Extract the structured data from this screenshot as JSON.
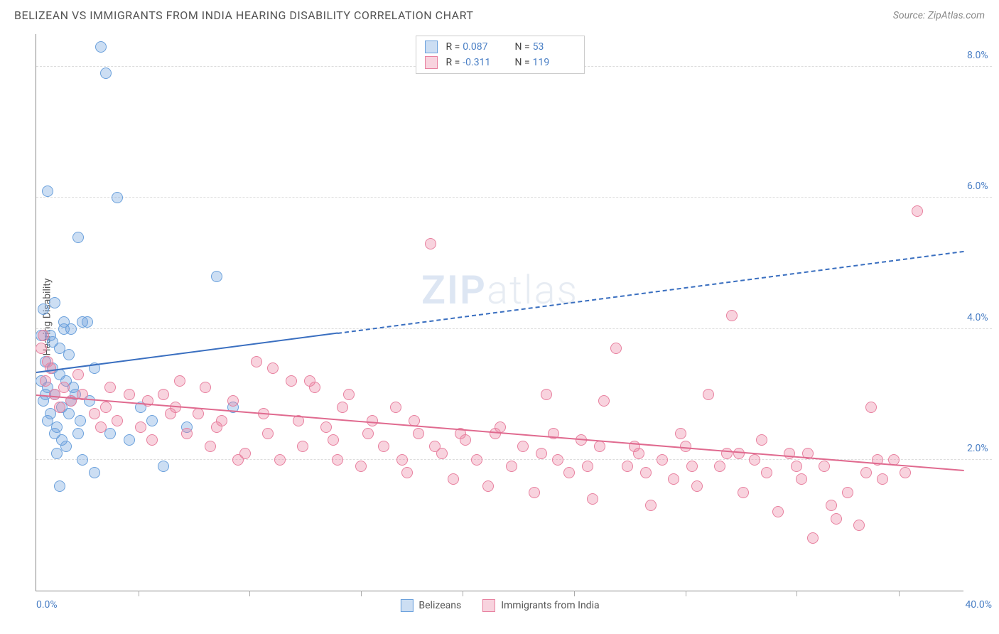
{
  "header": {
    "title": "BELIZEAN VS IMMIGRANTS FROM INDIA HEARING DISABILITY CORRELATION CHART",
    "source": "Source: ZipAtlas.com"
  },
  "watermark": {
    "prefix": "ZIP",
    "suffix": "atlas"
  },
  "chart": {
    "type": "scatter",
    "ylabel": "Hearing Disability",
    "xlim": [
      0,
      40
    ],
    "ylim": [
      0,
      8.5
    ],
    "x_axis": {
      "min_label": "0.0%",
      "max_label": "40.0%",
      "tick_positions_pct": [
        11,
        23,
        35,
        46,
        58,
        70,
        82,
        93
      ]
    },
    "y_grid": [
      {
        "value": 2.0,
        "label": "2.0%"
      },
      {
        "value": 4.0,
        "label": "4.0%"
      },
      {
        "value": 6.0,
        "label": "6.0%"
      },
      {
        "value": 8.0,
        "label": "8.0%"
      }
    ],
    "series": [
      {
        "name": "Belizeans",
        "fill": "rgba(110,160,220,0.35)",
        "stroke": "#6aa0dc",
        "r_value": "0.087",
        "n_value": "53",
        "trend": {
          "x1": 0,
          "y1": 3.35,
          "x2": 40,
          "y2": 5.2,
          "solid_until_x": 13,
          "color": "#3a6fc0"
        },
        "points": [
          [
            0.2,
            3.2
          ],
          [
            0.3,
            2.9
          ],
          [
            0.4,
            3.5
          ],
          [
            0.5,
            3.1
          ],
          [
            0.6,
            2.7
          ],
          [
            0.7,
            3.8
          ],
          [
            0.8,
            3.0
          ],
          [
            0.9,
            2.5
          ],
          [
            1.0,
            3.3
          ],
          [
            1.1,
            2.8
          ],
          [
            1.2,
            4.0
          ],
          [
            1.3,
            2.2
          ],
          [
            1.4,
            3.6
          ],
          [
            1.5,
            2.9
          ],
          [
            1.6,
            3.1
          ],
          [
            1.8,
            2.4
          ],
          [
            2.0,
            2.0
          ],
          [
            2.2,
            4.1
          ],
          [
            2.5,
            3.4
          ],
          [
            2.8,
            8.3
          ],
          [
            3.0,
            7.9
          ],
          [
            3.5,
            6.0
          ],
          [
            0.5,
            6.1
          ],
          [
            1.8,
            5.4
          ],
          [
            4.5,
            2.8
          ],
          [
            5.0,
            2.6
          ],
          [
            5.5,
            1.9
          ],
          [
            6.5,
            2.5
          ],
          [
            7.8,
            4.8
          ],
          [
            1.0,
            1.6
          ],
          [
            2.5,
            1.8
          ],
          [
            1.2,
            4.1
          ],
          [
            8.5,
            2.8
          ],
          [
            0.3,
            4.3
          ],
          [
            0.8,
            4.4
          ],
          [
            1.5,
            4.0
          ],
          [
            2.0,
            4.1
          ],
          [
            0.6,
            3.9
          ],
          [
            3.2,
            2.4
          ],
          [
            4.0,
            2.3
          ],
          [
            1.0,
            3.7
          ],
          [
            0.4,
            3.0
          ],
          [
            0.7,
            3.4
          ],
          [
            1.3,
            3.2
          ],
          [
            1.7,
            3.0
          ],
          [
            2.3,
            2.9
          ],
          [
            0.9,
            2.1
          ],
          [
            1.1,
            2.3
          ],
          [
            0.5,
            2.6
          ],
          [
            0.8,
            2.4
          ],
          [
            1.4,
            2.7
          ],
          [
            1.9,
            2.6
          ],
          [
            0.2,
            3.9
          ]
        ]
      },
      {
        "name": "Immigrants from India",
        "fill": "rgba(235,130,160,0.35)",
        "stroke": "#e8809f",
        "r_value": "-0.311",
        "n_value": "119",
        "trend": {
          "x1": 0,
          "y1": 3.0,
          "x2": 40,
          "y2": 1.85,
          "solid_until_x": 40,
          "color": "#e06a8f"
        },
        "points": [
          [
            0.2,
            3.7
          ],
          [
            0.3,
            3.9
          ],
          [
            0.4,
            3.2
          ],
          [
            0.5,
            3.5
          ],
          [
            0.8,
            3.0
          ],
          [
            1.0,
            2.8
          ],
          [
            1.5,
            2.9
          ],
          [
            2.0,
            3.0
          ],
          [
            2.5,
            2.7
          ],
          [
            3.0,
            2.8
          ],
          [
            3.5,
            2.6
          ],
          [
            4.0,
            3.0
          ],
          [
            4.5,
            2.5
          ],
          [
            5.0,
            2.3
          ],
          [
            5.5,
            3.0
          ],
          [
            6.0,
            2.8
          ],
          [
            6.5,
            2.4
          ],
          [
            7.0,
            2.7
          ],
          [
            7.5,
            2.2
          ],
          [
            8.0,
            2.6
          ],
          [
            8.5,
            2.9
          ],
          [
            9.0,
            2.1
          ],
          [
            9.5,
            3.5
          ],
          [
            10.0,
            2.4
          ],
          [
            10.5,
            2.0
          ],
          [
            11.0,
            3.2
          ],
          [
            11.5,
            2.2
          ],
          [
            12.0,
            3.1
          ],
          [
            12.5,
            2.5
          ],
          [
            13.0,
            2.0
          ],
          [
            13.5,
            3.0
          ],
          [
            14.0,
            1.9
          ],
          [
            14.5,
            2.6
          ],
          [
            15.0,
            2.2
          ],
          [
            15.5,
            2.8
          ],
          [
            16.0,
            1.8
          ],
          [
            16.5,
            2.4
          ],
          [
            17.0,
            5.3
          ],
          [
            17.5,
            2.1
          ],
          [
            18.0,
            1.7
          ],
          [
            18.5,
            2.3
          ],
          [
            19.0,
            2.0
          ],
          [
            19.5,
            1.6
          ],
          [
            20.0,
            2.5
          ],
          [
            20.5,
            1.9
          ],
          [
            21.0,
            2.2
          ],
          [
            21.5,
            1.5
          ],
          [
            22.0,
            3.0
          ],
          [
            22.5,
            2.0
          ],
          [
            23.0,
            1.8
          ],
          [
            23.5,
            2.3
          ],
          [
            24.0,
            1.4
          ],
          [
            24.5,
            2.9
          ],
          [
            25.0,
            3.7
          ],
          [
            25.5,
            1.9
          ],
          [
            26.0,
            2.1
          ],
          [
            26.5,
            1.3
          ],
          [
            27.0,
            2.0
          ],
          [
            27.5,
            1.7
          ],
          [
            28.0,
            2.2
          ],
          [
            28.5,
            1.6
          ],
          [
            29.0,
            3.0
          ],
          [
            29.5,
            1.9
          ],
          [
            30.0,
            4.2
          ],
          [
            30.5,
            1.5
          ],
          [
            31.0,
            2.0
          ],
          [
            31.5,
            1.8
          ],
          [
            32.0,
            1.2
          ],
          [
            32.5,
            2.1
          ],
          [
            33.0,
            1.7
          ],
          [
            33.5,
            0.8
          ],
          [
            34.0,
            1.9
          ],
          [
            34.5,
            1.1
          ],
          [
            35.0,
            1.5
          ],
          [
            35.5,
            1.0
          ],
          [
            36.0,
            2.8
          ],
          [
            36.5,
            1.7
          ],
          [
            37.0,
            2.0
          ],
          [
            37.5,
            1.8
          ],
          [
            38.0,
            5.8
          ],
          [
            10.2,
            3.4
          ],
          [
            11.8,
            3.2
          ],
          [
            13.2,
            2.8
          ],
          [
            7.3,
            3.1
          ],
          [
            8.7,
            2.0
          ],
          [
            6.2,
            3.2
          ],
          [
            4.8,
            2.9
          ],
          [
            3.2,
            3.1
          ],
          [
            2.8,
            2.5
          ],
          [
            1.8,
            3.3
          ],
          [
            1.2,
            3.1
          ],
          [
            0.6,
            3.4
          ],
          [
            15.8,
            2.0
          ],
          [
            17.2,
            2.2
          ],
          [
            19.8,
            2.4
          ],
          [
            21.8,
            2.1
          ],
          [
            23.8,
            1.9
          ],
          [
            25.8,
            2.2
          ],
          [
            27.8,
            2.4
          ],
          [
            29.8,
            2.1
          ],
          [
            16.3,
            2.6
          ],
          [
            18.3,
            2.4
          ],
          [
            12.8,
            2.3
          ],
          [
            14.3,
            2.4
          ],
          [
            5.8,
            2.7
          ],
          [
            7.8,
            2.5
          ],
          [
            9.8,
            2.7
          ],
          [
            11.3,
            2.6
          ],
          [
            32.8,
            1.9
          ],
          [
            34.3,
            1.3
          ],
          [
            35.8,
            1.8
          ],
          [
            36.3,
            2.0
          ],
          [
            30.3,
            2.1
          ],
          [
            31.3,
            2.3
          ],
          [
            33.3,
            2.1
          ],
          [
            26.3,
            1.8
          ],
          [
            28.3,
            1.9
          ],
          [
            22.3,
            2.4
          ],
          [
            24.3,
            2.2
          ]
        ]
      }
    ]
  }
}
